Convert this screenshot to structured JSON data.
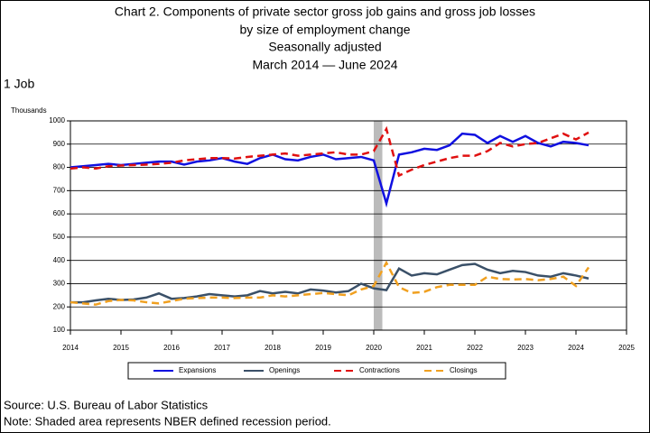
{
  "chart_data": {
    "type": "line",
    "title": "Chart 2. Components of private sector gross job gains and gross job losses",
    "subtitle": [
      "by size of employment change",
      "Seasonally adjusted",
      "March 2014 — June 2024"
    ],
    "y_label": "1 Job",
    "y_unit": "Thousands",
    "x": [
      2014,
      2014.25,
      2014.5,
      2014.75,
      2015,
      2015.25,
      2015.5,
      2015.75,
      2016,
      2016.25,
      2016.5,
      2016.75,
      2017,
      2017.25,
      2017.5,
      2017.75,
      2018,
      2018.25,
      2018.5,
      2018.75,
      2019,
      2019.25,
      2019.5,
      2019.75,
      2020,
      2020.25,
      2020.5,
      2020.75,
      2021,
      2021.25,
      2021.5,
      2021.75,
      2022,
      2022.25,
      2022.5,
      2022.75,
      2023,
      2023.25,
      2023.5,
      2023.75,
      2024,
      2024.25
    ],
    "series": [
      {
        "name": "Expansions",
        "color": "#1010e0",
        "dash": "solid",
        "values": [
          800,
          805,
          810,
          815,
          810,
          815,
          820,
          825,
          825,
          812,
          825,
          830,
          840,
          825,
          815,
          840,
          855,
          835,
          830,
          845,
          855,
          835,
          840,
          845,
          830,
          645,
          855,
          865,
          880,
          875,
          895,
          945,
          940,
          905,
          935,
          910,
          935,
          905,
          890,
          910,
          905,
          895
        ]
      },
      {
        "name": "Openings",
        "color": "#3a5068",
        "dash": "solid",
        "values": [
          220,
          220,
          228,
          235,
          230,
          232,
          240,
          258,
          235,
          238,
          245,
          255,
          250,
          245,
          250,
          268,
          258,
          265,
          258,
          275,
          270,
          262,
          268,
          300,
          280,
          272,
          365,
          335,
          345,
          340,
          360,
          380,
          385,
          360,
          345,
          355,
          350,
          335,
          330,
          345,
          335,
          322
        ]
      },
      {
        "name": "Contractions",
        "color": "#e01010",
        "dash": "dashed",
        "values": [
          795,
          800,
          795,
          805,
          808,
          810,
          812,
          815,
          820,
          830,
          835,
          840,
          840,
          838,
          845,
          850,
          855,
          860,
          850,
          855,
          860,
          865,
          855,
          855,
          870,
          965,
          765,
          790,
          810,
          825,
          840,
          850,
          850,
          870,
          905,
          890,
          900,
          905,
          925,
          945,
          920,
          950
        ]
      },
      {
        "name": "Closings",
        "color": "#f0a020",
        "dash": "dashed",
        "values": [
          220,
          215,
          210,
          225,
          230,
          228,
          220,
          215,
          225,
          235,
          238,
          240,
          240,
          238,
          240,
          240,
          250,
          245,
          250,
          255,
          260,
          255,
          250,
          275,
          290,
          390,
          285,
          260,
          265,
          285,
          295,
          295,
          295,
          330,
          320,
          318,
          320,
          315,
          320,
          330,
          290,
          370
        ]
      }
    ],
    "shaded": [
      2020,
      2020.17
    ],
    "xlim": [
      2014,
      2025
    ],
    "xticks": [
      2014,
      2015,
      2016,
      2017,
      2018,
      2019,
      2020,
      2021,
      2022,
      2023,
      2024,
      2025
    ],
    "ylim": [
      100,
      1000
    ],
    "yticks": [
      100,
      200,
      300,
      400,
      500,
      600,
      700,
      800,
      900,
      1000
    ],
    "grid": true,
    "notes": [
      "Source: U.S. Bureau of Labor Statistics",
      "Note: Shaded area represents NBER defined recession period."
    ]
  }
}
